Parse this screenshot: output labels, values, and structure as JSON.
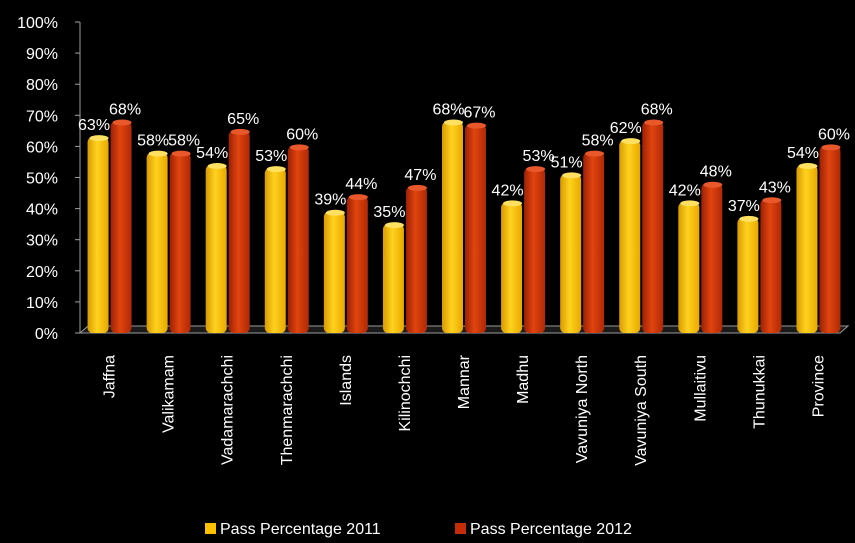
{
  "chart_data": {
    "type": "bar",
    "title": "",
    "xlabel": "",
    "ylabel": "",
    "ylim": [
      0,
      100
    ],
    "yticks": [
      "0%",
      "10%",
      "20%",
      "30%",
      "40%",
      "50%",
      "60%",
      "70%",
      "80%",
      "90%",
      "100%"
    ],
    "categories": [
      "Jaffna",
      "Valikamam",
      "Vadamarachchi",
      "Thenmarachchi",
      "Islands",
      "Kilinochchi",
      "Mannar",
      "Madhu",
      "Vavuniya North",
      "Vavuniya South",
      "Mullaitivu",
      "Thunukkai",
      "Province"
    ],
    "series": [
      {
        "name": "Pass Percentage 2011",
        "color": "#FFC000",
        "values": [
          63,
          58,
          54,
          53,
          39,
          35,
          68,
          42,
          51,
          62,
          42,
          37,
          54
        ],
        "labels": [
          "63%",
          "58%",
          "54%",
          "53%",
          "39%",
          "35%",
          "68%",
          "42%",
          "51%",
          "62%",
          "42%",
          "37%",
          "54%"
        ]
      },
      {
        "name": "Pass Percentage  2012",
        "color": "#C62D06",
        "values": [
          68,
          58,
          65,
          60,
          44,
          47,
          67,
          53,
          58,
          68,
          48,
          43,
          60
        ],
        "labels": [
          "68%",
          "58%",
          "65%",
          "60%",
          "44%",
          "47%",
          "67%",
          "53%",
          "58%",
          "68%",
          "48%",
          "43%",
          "60%"
        ]
      }
    ],
    "grid": false,
    "legend_position": "bottom"
  }
}
